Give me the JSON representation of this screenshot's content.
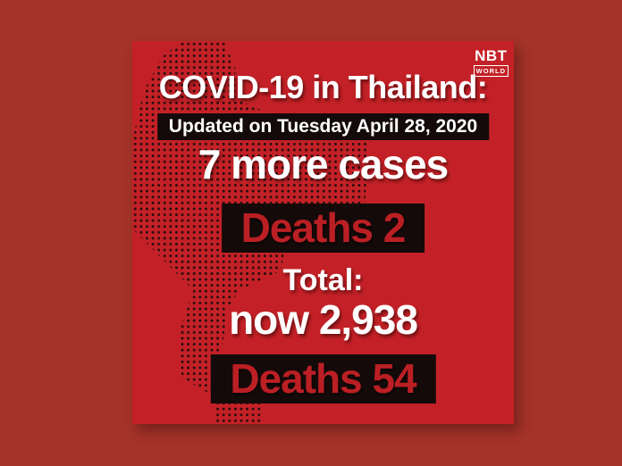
{
  "colors": {
    "outer_background": "#a43329",
    "card_background": "#c32127",
    "bar_background": "#140a0a",
    "deaths_text": "#bb1f24",
    "light_text": "#ffffff",
    "map_dot": "#1e0c0c"
  },
  "logo": {
    "name": "NBT",
    "sub": "WORLD"
  },
  "infographic": {
    "title": "COVID-19 in Thailand:",
    "updated": "Updated on Tuesday April 28, 2020",
    "new_cases": "7 more cases",
    "new_deaths": "Deaths 2",
    "total_label": "Total:",
    "total_cases": "now 2,938",
    "total_deaths": "Deaths 54"
  }
}
